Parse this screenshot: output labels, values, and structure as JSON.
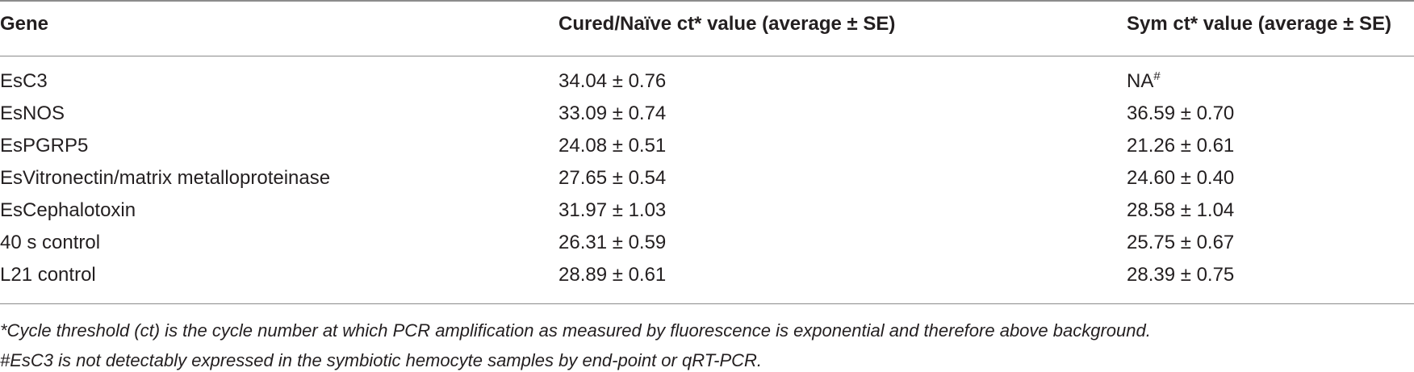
{
  "table": {
    "headers": [
      "Gene",
      "Cured/Naïve ct* value (average ± SE)",
      "Sym ct* value (average ± SE)"
    ],
    "rows": [
      {
        "gene": "EsC3",
        "cured": "34.04 ± 0.76",
        "sym": "NA",
        "sym_sup": "#"
      },
      {
        "gene": "EsNOS",
        "cured": "33.09 ± 0.74",
        "sym": "36.59 ± 0.70",
        "sym_sup": ""
      },
      {
        "gene": "EsPGRP5",
        "cured": "24.08 ± 0.51",
        "sym": "21.26 ± 0.61",
        "sym_sup": ""
      },
      {
        "gene": "EsVitronectin/matrix metalloproteinase",
        "cured": "27.65 ± 0.54",
        "sym": "24.60 ± 0.40",
        "sym_sup": ""
      },
      {
        "gene": "EsCephalotoxin",
        "cured": "31.97 ± 1.03",
        "sym": "28.58 ± 1.04",
        "sym_sup": ""
      },
      {
        "gene": "40 s control",
        "cured": "26.31 ± 0.59",
        "sym": "25.75 ± 0.67",
        "sym_sup": ""
      },
      {
        "gene": "L21 control",
        "cured": "28.89 ± 0.61",
        "sym": "28.39 ± 0.75",
        "sym_sup": ""
      }
    ]
  },
  "footnotes": [
    "*Cycle threshold (ct) is the cycle number at which PCR amplification as measured by fluorescence is exponential and therefore above background.",
    "#EsC3 is not detectably expressed in the symbiotic hemocyte samples by end-point or qRT-PCR."
  ]
}
